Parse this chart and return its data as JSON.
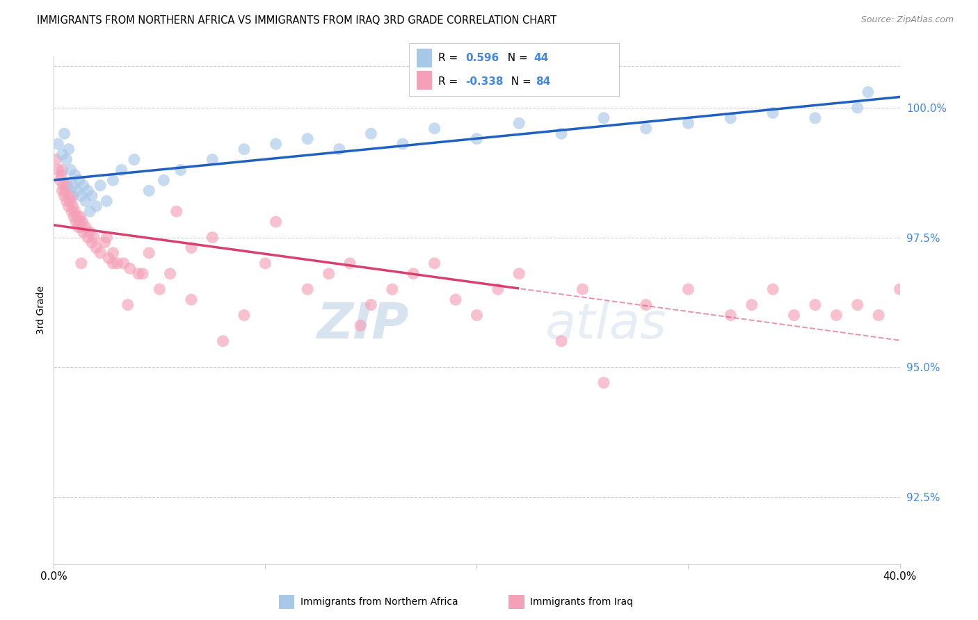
{
  "title": "IMMIGRANTS FROM NORTHERN AFRICA VS IMMIGRANTS FROM IRAQ 3RD GRADE CORRELATION CHART",
  "source": "Source: ZipAtlas.com",
  "ylabel": "3rd Grade",
  "y_ticks": [
    92.5,
    95.0,
    97.5,
    100.0
  ],
  "y_tick_labels": [
    "92.5%",
    "95.0%",
    "97.5%",
    "100.0%"
  ],
  "xmin": 0.0,
  "xmax": 40.0,
  "ymin": 91.2,
  "ymax": 101.0,
  "legend_R_blue": "0.596",
  "legend_N_blue": "44",
  "legend_R_pink": "-0.338",
  "legend_N_pink": "84",
  "legend_label_blue": "Immigrants from Northern Africa",
  "legend_label_pink": "Immigrants from Iraq",
  "blue_color": "#a8c8e8",
  "pink_color": "#f4a0b8",
  "blue_line_color": "#2060c0",
  "pink_line_color": "#d84070",
  "watermark_zip": "ZIP",
  "watermark_atlas": "atlas",
  "blue_scatter_x": [
    0.2,
    0.4,
    0.5,
    0.6,
    0.7,
    0.8,
    0.9,
    1.0,
    1.1,
    1.2,
    1.3,
    1.4,
    1.5,
    1.6,
    1.7,
    1.8,
    2.0,
    2.2,
    2.5,
    2.8,
    3.2,
    3.8,
    4.5,
    5.2,
    6.0,
    7.5,
    9.0,
    10.5,
    12.0,
    13.5,
    15.0,
    16.5,
    18.0,
    20.0,
    22.0,
    24.0,
    26.0,
    28.0,
    30.0,
    32.0,
    34.0,
    36.0,
    38.0,
    38.5
  ],
  "blue_scatter_y": [
    99.3,
    99.1,
    99.5,
    99.0,
    99.2,
    98.8,
    98.5,
    98.7,
    98.4,
    98.6,
    98.3,
    98.5,
    98.2,
    98.4,
    98.0,
    98.3,
    98.1,
    98.5,
    98.2,
    98.6,
    98.8,
    99.0,
    98.4,
    98.6,
    98.8,
    99.0,
    99.2,
    99.3,
    99.4,
    99.2,
    99.5,
    99.3,
    99.6,
    99.4,
    99.7,
    99.5,
    99.8,
    99.6,
    99.7,
    99.8,
    99.9,
    99.8,
    100.0,
    100.3
  ],
  "pink_scatter_x": [
    0.1,
    0.2,
    0.3,
    0.35,
    0.4,
    0.45,
    0.5,
    0.55,
    0.6,
    0.65,
    0.7,
    0.75,
    0.8,
    0.85,
    0.9,
    0.95,
    1.0,
    1.05,
    1.1,
    1.15,
    1.2,
    1.25,
    1.3,
    1.35,
    1.4,
    1.5,
    1.6,
    1.7,
    1.8,
    1.9,
    2.0,
    2.2,
    2.4,
    2.6,
    2.8,
    3.0,
    3.3,
    3.6,
    4.0,
    4.5,
    5.0,
    5.5,
    6.5,
    7.5,
    9.0,
    10.0,
    12.0,
    13.0,
    14.0,
    15.0,
    16.0,
    17.0,
    18.0,
    19.0,
    20.0,
    21.0,
    22.0,
    25.0,
    28.0,
    30.0,
    32.0,
    33.0,
    34.0,
    35.0,
    36.0,
    37.0,
    38.0,
    39.0,
    40.0,
    3.5,
    5.8,
    8.0,
    2.5,
    1.3,
    0.9,
    0.6,
    0.4,
    2.8,
    4.2,
    6.5,
    10.5,
    14.5,
    24.0,
    26.0
  ],
  "pink_scatter_y": [
    99.0,
    98.8,
    98.6,
    98.7,
    98.4,
    98.5,
    98.3,
    98.4,
    98.2,
    98.5,
    98.1,
    98.3,
    98.2,
    98.0,
    98.1,
    97.9,
    98.0,
    97.8,
    97.9,
    97.7,
    97.8,
    97.9,
    97.7,
    97.8,
    97.6,
    97.7,
    97.5,
    97.6,
    97.4,
    97.5,
    97.3,
    97.2,
    97.4,
    97.1,
    97.2,
    97.0,
    97.0,
    96.9,
    96.8,
    97.2,
    96.5,
    96.8,
    96.3,
    97.5,
    96.0,
    97.0,
    96.5,
    96.8,
    97.0,
    96.2,
    96.5,
    96.8,
    97.0,
    96.3,
    96.0,
    96.5,
    96.8,
    96.5,
    96.2,
    96.5,
    96.0,
    96.2,
    96.5,
    96.0,
    96.2,
    96.0,
    96.2,
    96.0,
    96.5,
    96.2,
    98.0,
    95.5,
    97.5,
    97.0,
    98.3,
    98.5,
    98.8,
    97.0,
    96.8,
    97.3,
    97.8,
    95.8,
    95.5,
    94.7
  ],
  "pink_solid_end_x": 22.0
}
